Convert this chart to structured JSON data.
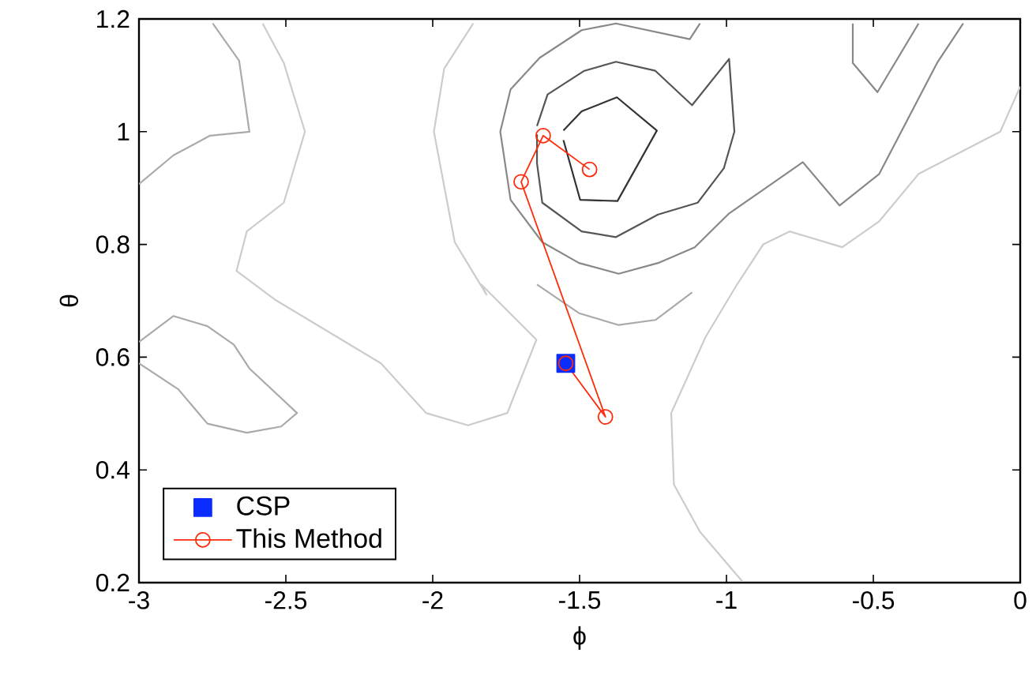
{
  "chart_data": {
    "type": "line",
    "xlabel": "ϕ",
    "ylabel": "θ",
    "xlim": [
      -3,
      0
    ],
    "ylim": [
      0.2,
      1.2
    ],
    "xticks": [
      -3,
      -2.5,
      -2,
      -1.5,
      -1,
      -0.5,
      0
    ],
    "yticks": [
      0.2,
      0.4,
      0.6,
      0.8,
      1,
      1.2
    ],
    "grid": false,
    "legend": "bottom left",
    "series": [
      {
        "color": "#333333",
        "marker": "none",
        "x": [
          -1.555,
          -1.493,
          -1.373,
          -1.237,
          -1.371,
          -1.498,
          -1.555
        ],
        "values": [
          1.002,
          1.036,
          1.061,
          1.002,
          0.877,
          0.879,
          0.985
        ]
      },
      {
        "color": "#555555",
        "marker": "none",
        "x": [
          -1.645,
          -1.609,
          -1.484,
          -1.376,
          -1.242,
          -1.117,
          -0.991,
          -0.973,
          -1.009,
          -1.098,
          -1.233,
          -1.376,
          -1.493,
          -1.627,
          -1.645,
          -1.645
        ],
        "values": [
          1.01,
          1.066,
          1.108,
          1.124,
          1.108,
          1.047,
          1.129,
          1.0,
          0.935,
          0.874,
          0.853,
          0.813,
          0.823,
          0.874,
          0.944,
          0.995
        ]
      },
      {
        "color": "#888888",
        "marker": "none",
        "x": [
          -1.09,
          -1.125,
          -1.376,
          -1.493,
          -1.636,
          -1.735,
          -1.77,
          -1.735,
          -1.627,
          -1.502,
          -1.367,
          -1.233,
          -1.108,
          -0.991,
          -0.875,
          -0.74,
          -0.615,
          -0.48,
          -0.283,
          -0.194
        ],
        "values": [
          1.192,
          1.164,
          1.192,
          1.18,
          1.131,
          1.075,
          1.0,
          0.879,
          0.804,
          0.767,
          0.748,
          0.767,
          0.795,
          0.855,
          0.897,
          0.946,
          0.869,
          0.925,
          1.122,
          1.192
        ]
      },
      {
        "color": "#888888",
        "marker": "none",
        "x": [
          -0.57,
          -0.57,
          -0.486,
          -0.346
        ],
        "values": [
          1.192,
          1.122,
          1.07,
          1.192
        ]
      },
      {
        "color": "#aaaaaa",
        "marker": "none",
        "x": [
          -2.749,
          -2.659,
          -2.624,
          -2.758,
          -2.883,
          -3.0
        ],
        "values": [
          1.192,
          1.126,
          1.0,
          0.993,
          0.958,
          0.907
        ]
      },
      {
        "color": "#aaaaaa",
        "marker": "none",
        "x": [
          -3.0,
          -2.883,
          -2.767,
          -2.677,
          -2.624,
          -2.462,
          -2.516,
          -2.633,
          -2.767,
          -2.866,
          -3.0
        ],
        "values": [
          0.627,
          0.673,
          0.655,
          0.622,
          0.58,
          0.501,
          0.477,
          0.466,
          0.482,
          0.543,
          0.589
        ]
      },
      {
        "color": "#aaaaaa",
        "marker": "none",
        "x": [
          -1.645,
          -1.502,
          -1.367,
          -1.242,
          -1.117
        ],
        "values": [
          0.729,
          0.678,
          0.657,
          0.666,
          0.715
        ]
      },
      {
        "color": "#cccccc",
        "marker": "none",
        "x": [
          -2.579,
          -2.507,
          -2.435,
          -2.507,
          -2.633,
          -2.668,
          -2.534,
          -2.176,
          -2.023,
          -1.88,
          -1.746,
          -1.647,
          -1.835,
          -1.817,
          -1.925,
          -1.996,
          -1.961,
          -1.862
        ],
        "values": [
          1.192,
          1.122,
          1.0,
          0.874,
          0.823,
          0.753,
          0.701,
          0.589,
          0.501,
          0.479,
          0.501,
          0.631,
          0.729,
          0.711,
          0.804,
          1.0,
          1.112,
          1.192
        ]
      },
      {
        "color": "#cccccc",
        "marker": "none",
        "x": [
          0.0,
          -0.068,
          -0.346,
          -0.48,
          -0.606,
          -0.785,
          -0.875,
          -0.964,
          -1.071,
          -1.188,
          -1.179,
          -1.09,
          -0.946
        ],
        "values": [
          1.08,
          1.0,
          0.925,
          0.841,
          0.795,
          0.823,
          0.8,
          0.729,
          0.636,
          0.501,
          0.374,
          0.29,
          0.202
        ]
      },
      {
        "name": "CSP",
        "type": "scatter",
        "color": "#0a2cff",
        "marker": "square",
        "x": [
          -1.547
        ],
        "values": [
          0.589
        ]
      },
      {
        "name": "This Method",
        "color": "#ff2a0a",
        "marker": "circle",
        "x": [
          -1.547,
          -1.412,
          -1.699,
          -1.624,
          -1.466
        ],
        "values": [
          0.589,
          0.494,
          0.911,
          0.993,
          0.933
        ]
      }
    ]
  }
}
